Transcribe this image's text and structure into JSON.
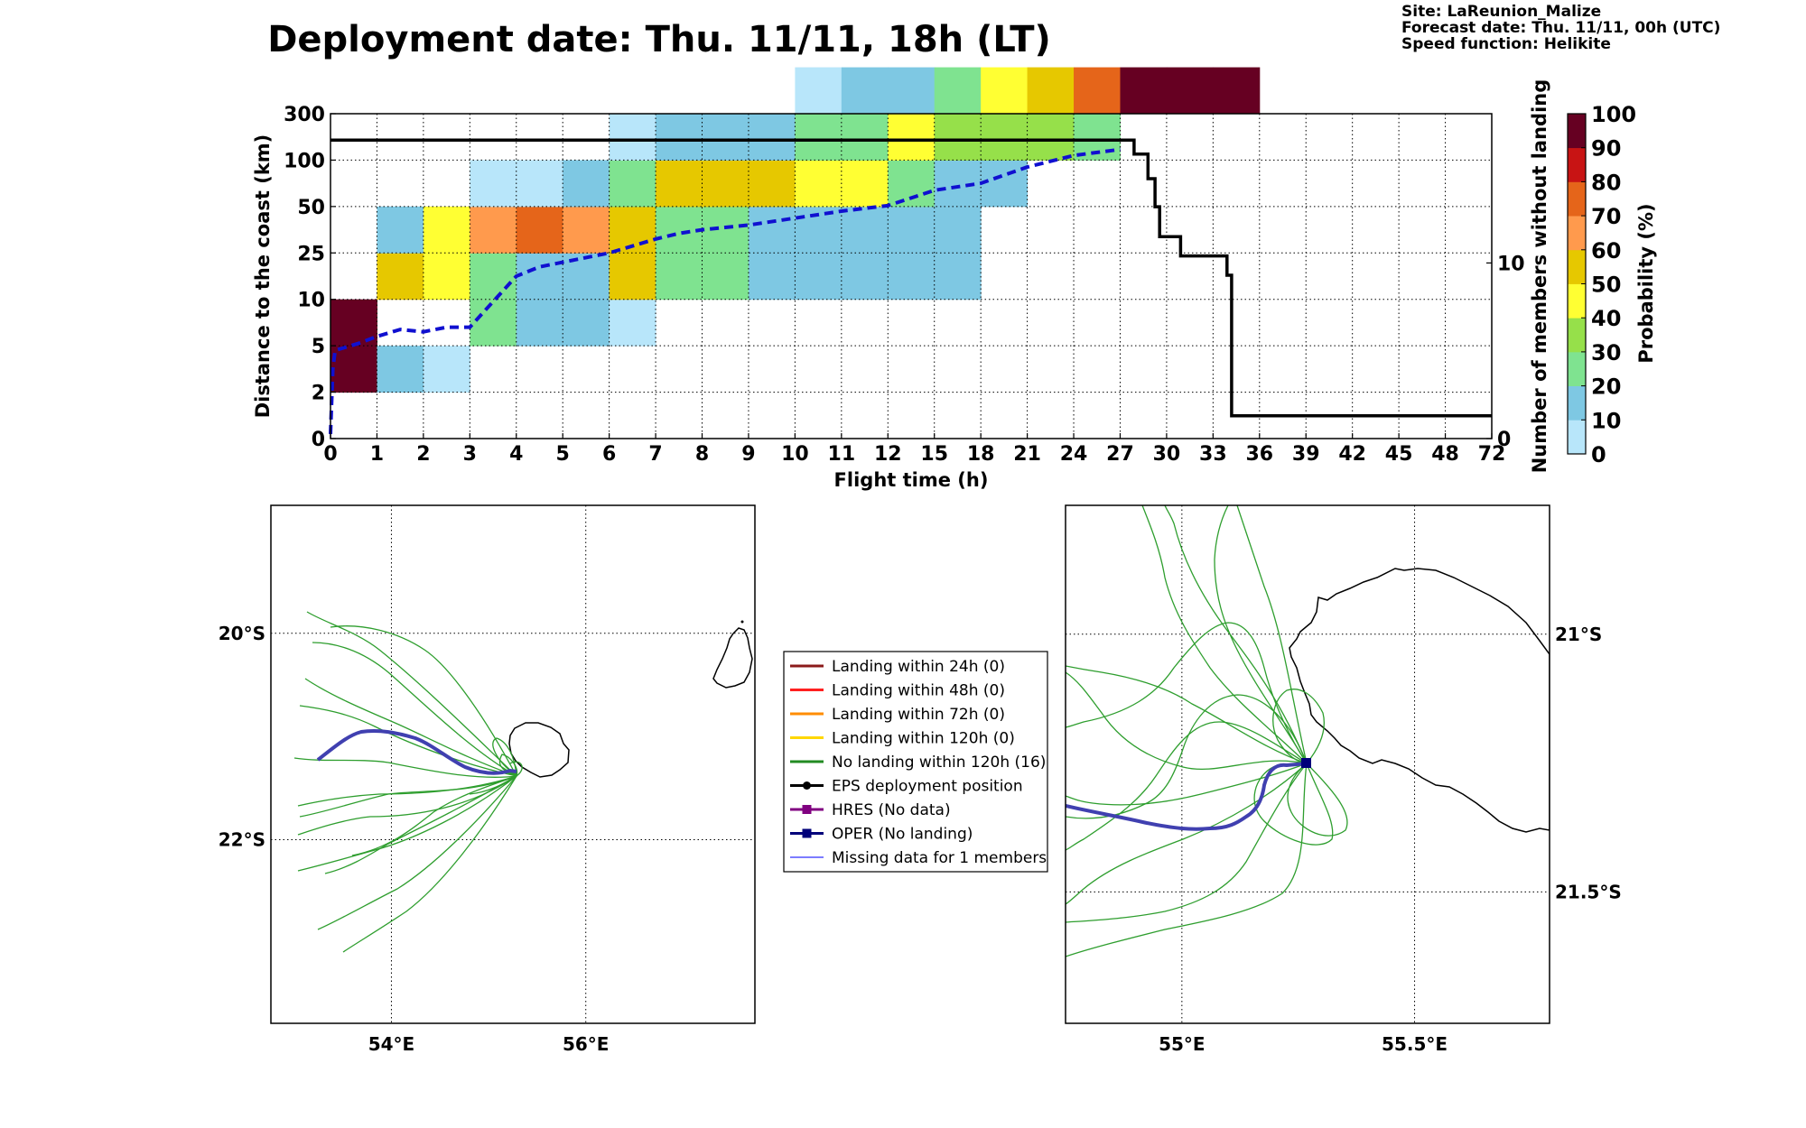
{
  "title": "Deployment date: Thu. 11/11, 18h (LT)",
  "info": {
    "site": "Site: LaReunion_Malize",
    "forecast": "Forecast date: Thu. 11/11, 00h (UTC)",
    "speed": "Speed function: Helikite"
  },
  "colors": {
    "axis": "#000000",
    "grid": "#000000",
    "bins": [
      "#b8e6fa",
      "#7ec8e3",
      "#7fe390",
      "#96e04a",
      "#ffff33",
      "#e6c800",
      "#ff9a4d",
      "#e5651a",
      "#c81414",
      "#660022"
    ],
    "mean_line": "#1010d0",
    "members_line": "#000000",
    "ensemble": "#2e9e2e",
    "oper": "#4040b0",
    "coast": "#000000"
  },
  "chart_data": [
    {
      "type": "heatmap",
      "xlabel": "Flight time (h)",
      "ylabel": "Distance to the coast (km)",
      "y2label": "Number of members without landing",
      "colorbar_label": "Probability (%)",
      "x_ticks": [
        "0",
        "1",
        "2",
        "3",
        "4",
        "5",
        "6",
        "7",
        "8",
        "9",
        "10",
        "11",
        "12",
        "15",
        "18",
        "21",
        "24",
        "27",
        "30",
        "33",
        "36",
        "39",
        "42",
        "45",
        "48",
        "72"
      ],
      "y_ticks": [
        "0",
        "2",
        "5",
        "10",
        "25",
        "50",
        "100",
        "300"
      ],
      "y2_ticks": [
        "0",
        "10"
      ],
      "y2_range": [
        0,
        18.5
      ],
      "colorbar_ticks": [
        "0",
        "10",
        "20",
        "30",
        "40",
        "50",
        "60",
        "70",
        "80",
        "90",
        "100"
      ],
      "colorbar_levels": [
        0,
        10,
        20,
        30,
        40,
        50,
        60,
        70,
        80,
        90,
        100
      ],
      "grid": true,
      "cells": [
        {
          "col": 0,
          "row": 1,
          "p": 100
        },
        {
          "col": 0,
          "row": 2,
          "p": 100
        },
        {
          "col": 1,
          "row": 1,
          "p": 10
        },
        {
          "col": 1,
          "row": 3,
          "p": 50
        },
        {
          "col": 1,
          "row": 4,
          "p": 10
        },
        {
          "col": 2,
          "row": 1,
          "p": 5
        },
        {
          "col": 2,
          "row": 3,
          "p": 40
        },
        {
          "col": 2,
          "row": 4,
          "p": 40
        },
        {
          "col": 3,
          "row": 2,
          "p": 20
        },
        {
          "col": 3,
          "row": 3,
          "p": 20
        },
        {
          "col": 3,
          "row": 4,
          "p": 60
        },
        {
          "col": 3,
          "row": 5,
          "p": 5
        },
        {
          "col": 4,
          "row": 2,
          "p": 10
        },
        {
          "col": 4,
          "row": 3,
          "p": 10
        },
        {
          "col": 4,
          "row": 4,
          "p": 70
        },
        {
          "col": 4,
          "row": 5,
          "p": 5
        },
        {
          "col": 5,
          "row": 2,
          "p": 10
        },
        {
          "col": 5,
          "row": 3,
          "p": 10
        },
        {
          "col": 5,
          "row": 4,
          "p": 60
        },
        {
          "col": 5,
          "row": 5,
          "p": 10
        },
        {
          "col": 6,
          "row": 2,
          "p": 5
        },
        {
          "col": 6,
          "row": 3,
          "p": 50
        },
        {
          "col": 6,
          "row": 4,
          "p": 50
        },
        {
          "col": 6,
          "row": 5,
          "p": 20
        },
        {
          "col": 6,
          "row": 6,
          "p": 5
        },
        {
          "col": 7,
          "row": 3,
          "p": 20
        },
        {
          "col": 7,
          "row": 4,
          "p": 20
        },
        {
          "col": 7,
          "row": 5,
          "p": 50
        },
        {
          "col": 7,
          "row": 6,
          "p": 10
        },
        {
          "col": 8,
          "row": 3,
          "p": 20
        },
        {
          "col": 8,
          "row": 4,
          "p": 20
        },
        {
          "col": 8,
          "row": 5,
          "p": 50
        },
        {
          "col": 8,
          "row": 6,
          "p": 10
        },
        {
          "col": 9,
          "row": 3,
          "p": 10
        },
        {
          "col": 9,
          "row": 4,
          "p": 10
        },
        {
          "col": 9,
          "row": 5,
          "p": 50
        },
        {
          "col": 9,
          "row": 6,
          "p": 10
        },
        {
          "col": 10,
          "row": 3,
          "p": 10
        },
        {
          "col": 10,
          "row": 4,
          "p": 10
        },
        {
          "col": 10,
          "row": 5,
          "p": 40
        },
        {
          "col": 10,
          "row": 6,
          "p": 20
        },
        {
          "col": 10,
          "row": 7,
          "p": 5
        },
        {
          "col": 11,
          "row": 3,
          "p": 10
        },
        {
          "col": 11,
          "row": 4,
          "p": 10
        },
        {
          "col": 11,
          "row": 5,
          "p": 40
        },
        {
          "col": 11,
          "row": 6,
          "p": 20
        },
        {
          "col": 11,
          "row": 7,
          "p": 10
        },
        {
          "col": 12,
          "row": 3,
          "p": 10
        },
        {
          "col": 12,
          "row": 4,
          "p": 10
        },
        {
          "col": 12,
          "row": 5,
          "p": 20
        },
        {
          "col": 12,
          "row": 6,
          "p": 40
        },
        {
          "col": 12,
          "row": 7,
          "p": 10
        },
        {
          "col": 13,
          "row": 3,
          "p": 10
        },
        {
          "col": 13,
          "row": 4,
          "p": 10
        },
        {
          "col": 13,
          "row": 5,
          "p": 10
        },
        {
          "col": 13,
          "row": 6,
          "p": 30
        },
        {
          "col": 13,
          "row": 7,
          "p": 20
        },
        {
          "col": 14,
          "row": 5,
          "p": 10
        },
        {
          "col": 14,
          "row": 6,
          "p": 30
        },
        {
          "col": 14,
          "row": 7,
          "p": 40
        },
        {
          "col": 15,
          "row": 6,
          "p": 30
        },
        {
          "col": 15,
          "row": 7,
          "p": 50
        },
        {
          "col": 16,
          "row": 6,
          "p": 20
        },
        {
          "col": 16,
          "row": 7,
          "p": 70
        },
        {
          "col": 17,
          "row": 7,
          "p": 100
        },
        {
          "col": 18,
          "row": 7,
          "p": 100
        },
        {
          "col": 19,
          "row": 7,
          "p": 100
        }
      ],
      "mean_distance_line": {
        "style": "dashed",
        "points": [
          [
            0,
            0.1
          ],
          [
            0.05,
            1.5
          ],
          [
            0.1,
            1.9
          ],
          [
            0.6,
            2.05
          ],
          [
            1,
            2.2
          ],
          [
            1.5,
            2.35
          ],
          [
            2,
            2.3
          ],
          [
            2.5,
            2.4
          ],
          [
            3,
            2.4
          ],
          [
            3.5,
            2.95
          ],
          [
            4,
            3.5
          ],
          [
            4.5,
            3.7
          ],
          [
            5,
            3.8
          ],
          [
            6,
            4.0
          ],
          [
            7,
            4.3
          ],
          [
            7.5,
            4.42
          ],
          [
            8,
            4.5
          ],
          [
            9,
            4.6
          ],
          [
            10,
            4.75
          ],
          [
            11,
            4.9
          ],
          [
            12,
            5.02
          ],
          [
            13,
            5.35
          ],
          [
            14,
            5.5
          ],
          [
            15,
            5.85
          ],
          [
            16,
            6.1
          ],
          [
            17,
            6.23
          ]
        ]
      },
      "members_without_landing": {
        "style": "step",
        "points": [
          [
            0,
            17
          ],
          [
            17.3,
            17
          ],
          [
            17.3,
            16.2
          ],
          [
            17.6,
            16.2
          ],
          [
            17.6,
            14.8
          ],
          [
            17.75,
            14.8
          ],
          [
            17.75,
            13.2
          ],
          [
            17.85,
            13.2
          ],
          [
            17.85,
            11.5
          ],
          [
            18.3,
            11.5
          ],
          [
            18.3,
            10.4
          ],
          [
            19.3,
            10.4
          ],
          [
            19.3,
            9.3
          ],
          [
            19.4,
            9.3
          ],
          [
            19.4,
            1.3
          ],
          [
            25,
            1.3
          ]
        ]
      }
    },
    {
      "type": "map",
      "x_ticks": [
        "54°E",
        "56°E"
      ],
      "y_ticks": [
        "20°S",
        "22°S"
      ],
      "lon_range": [
        52.76,
        57.74
      ],
      "lat_range": [
        -23.78,
        -18.76
      ],
      "grid": true
    },
    {
      "type": "map",
      "x_ticks": [
        "55°E",
        "55.5°E"
      ],
      "y_ticks": [
        "21°S",
        "21.5°S"
      ],
      "lon_range": [
        54.75,
        55.79
      ],
      "lat_range": [
        -21.755,
        -20.75
      ],
      "grid": true
    }
  ],
  "legend": [
    {
      "label": "Landing within 24h (0)",
      "color": "#8b1a1a",
      "marker": "none"
    },
    {
      "label": "Landing within 48h (0)",
      "color": "#ff2020",
      "marker": "none"
    },
    {
      "label": "Landing within 72h (0)",
      "color": "#ff8c00",
      "marker": "none"
    },
    {
      "label": "Landing within 120h (0)",
      "color": "#ffd700",
      "marker": "none"
    },
    {
      "label": "No landing within 120h (16)",
      "color": "#228b22",
      "marker": "none"
    },
    {
      "label": "EPS deployment position",
      "color": "#000000",
      "marker": "circle"
    },
    {
      "label": "HRES (No data)",
      "color": "#800080",
      "marker": "square"
    },
    {
      "label": "OPER (No landing)",
      "color": "#00007a",
      "marker": "square"
    },
    {
      "label": "Missing data for 1 members",
      "color": "#5050ff",
      "marker": "none"
    }
  ]
}
